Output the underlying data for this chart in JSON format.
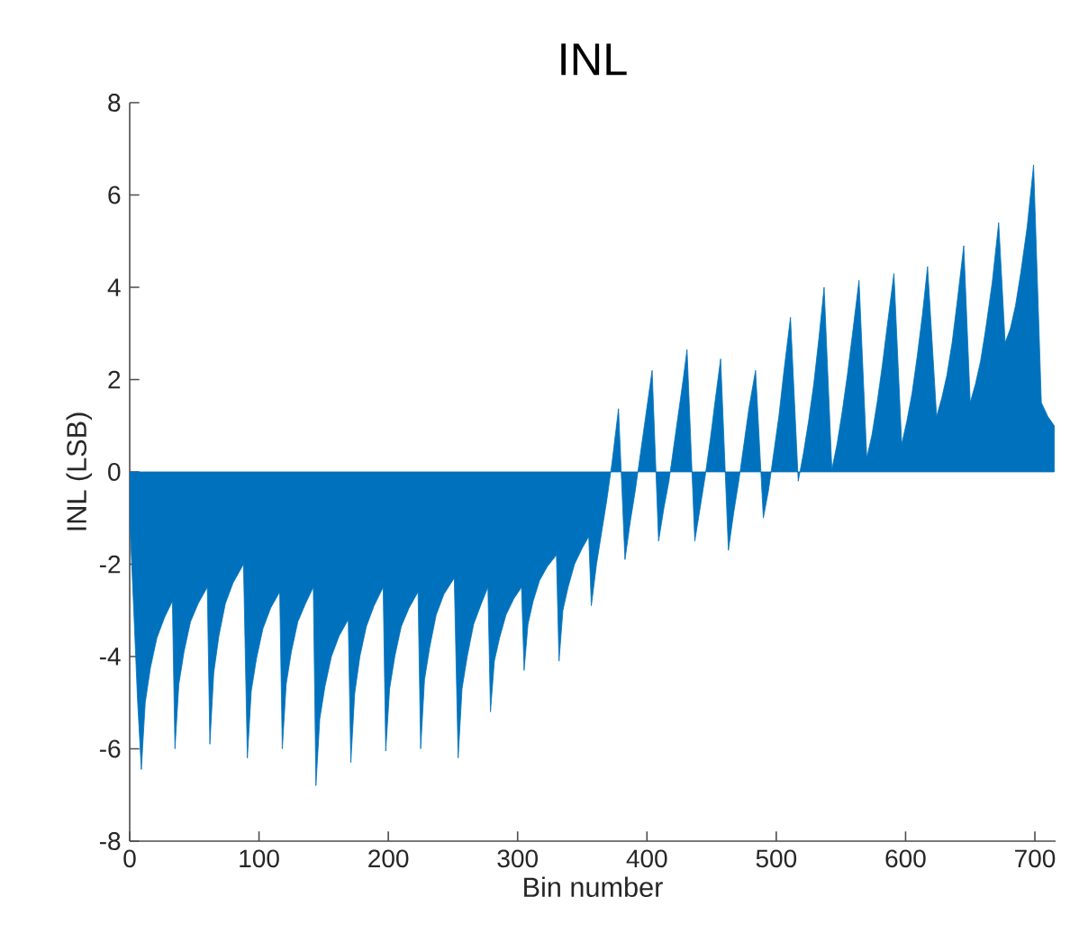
{
  "chart_data": {
    "type": "area",
    "title": "INL",
    "xlabel": "Bin number",
    "ylabel": "INL (LSB)",
    "color": "#0072bd",
    "xlim": [
      0,
      716
    ],
    "ylim": [
      -8,
      8
    ],
    "xticks": [
      0,
      100,
      200,
      300,
      400,
      500,
      600,
      700
    ],
    "yticks": [
      -8,
      -6,
      -4,
      -2,
      0,
      2,
      4,
      6,
      8
    ],
    "grid": false,
    "x": [
      0,
      3,
      6,
      9,
      12,
      16,
      21,
      27,
      33,
      35,
      38,
      42,
      47,
      53,
      60,
      62,
      65,
      69,
      74,
      80,
      88,
      91,
      94,
      98,
      103,
      109,
      116,
      118,
      121,
      125,
      130,
      136,
      142,
      144,
      147,
      151,
      156,
      162,
      169,
      171,
      174,
      178,
      183,
      189,
      196,
      198,
      201,
      205,
      210,
      216,
      223,
      225,
      228,
      232,
      237,
      243,
      251,
      254,
      257,
      261,
      266,
      272,
      277,
      279,
      282,
      286,
      291,
      297,
      303,
      305,
      308,
      312,
      317,
      323,
      330,
      332,
      335,
      339,
      344,
      350,
      355,
      357,
      361,
      365,
      369,
      373,
      376,
      378,
      383,
      387,
      391,
      395,
      399,
      402,
      404,
      409,
      413,
      417,
      421,
      425,
      428,
      431,
      437,
      441,
      445,
      449,
      453,
      457,
      463,
      467,
      471,
      475,
      479,
      484,
      490,
      494,
      498,
      502,
      506,
      511,
      517,
      521,
      525,
      529,
      533,
      537,
      543,
      547,
      551,
      555,
      559,
      564,
      570,
      574,
      578,
      582,
      586,
      591,
      597,
      601,
      605,
      609,
      613,
      617,
      624,
      628,
      632,
      636,
      640,
      645,
      650,
      654,
      658,
      662,
      667,
      672,
      677,
      681,
      685,
      689,
      694,
      699,
      705,
      710,
      715
    ],
    "values": [
      -1.0,
      -2.9,
      -4.9,
      -6.45,
      -5.0,
      -4.25,
      -3.6,
      -3.15,
      -2.8,
      -6.0,
      -4.6,
      -3.9,
      -3.25,
      -2.85,
      -2.5,
      -5.9,
      -4.35,
      -3.55,
      -2.85,
      -2.4,
      -2.0,
      -6.2,
      -4.75,
      -4.05,
      -3.4,
      -2.95,
      -2.6,
      -6.0,
      -4.6,
      -3.9,
      -3.25,
      -2.85,
      -2.5,
      -6.8,
      -5.35,
      -4.65,
      -4.0,
      -3.55,
      -3.2,
      -6.3,
      -4.8,
      -4.0,
      -3.35,
      -2.9,
      -2.5,
      -6.05,
      -4.7,
      -4.0,
      -3.35,
      -2.95,
      -2.6,
      -6.0,
      -4.5,
      -3.8,
      -3.1,
      -2.65,
      -2.3,
      -6.2,
      -4.7,
      -4.0,
      -3.3,
      -2.85,
      -2.5,
      -5.2,
      -4.1,
      -3.6,
      -3.1,
      -2.75,
      -2.5,
      -4.3,
      -3.3,
      -2.8,
      -2.35,
      -2.05,
      -1.8,
      -4.1,
      -3.0,
      -2.5,
      -2.0,
      -1.65,
      -1.4,
      -2.9,
      -2.0,
      -1.3,
      -0.6,
      0.2,
      0.9,
      1.37,
      -1.9,
      -1.1,
      -0.4,
      0.4,
      1.2,
      1.8,
      2.2,
      -1.5,
      -0.8,
      -0.2,
      0.6,
      1.4,
      2.0,
      2.65,
      -1.5,
      -0.8,
      -0.1,
      0.7,
      1.6,
      2.45,
      -1.7,
      -0.9,
      -0.2,
      0.6,
      1.4,
      2.2,
      -1.0,
      -0.4,
      0.4,
      1.2,
      2.2,
      3.35,
      -0.2,
      0.4,
      1.1,
      1.9,
      2.9,
      4.0,
      0.05,
      0.6,
      1.3,
      2.1,
      3.0,
      4.15,
      0.3,
      0.8,
      1.5,
      2.3,
      3.2,
      4.3,
      0.6,
      1.1,
      1.7,
      2.5,
      3.4,
      4.45,
      1.2,
      1.6,
      2.1,
      2.8,
      3.7,
      4.9,
      1.5,
      1.9,
      2.4,
      3.1,
      4.1,
      5.4,
      2.8,
      3.1,
      3.6,
      4.3,
      5.3,
      6.65,
      1.5,
      1.2,
      1.0
    ]
  }
}
